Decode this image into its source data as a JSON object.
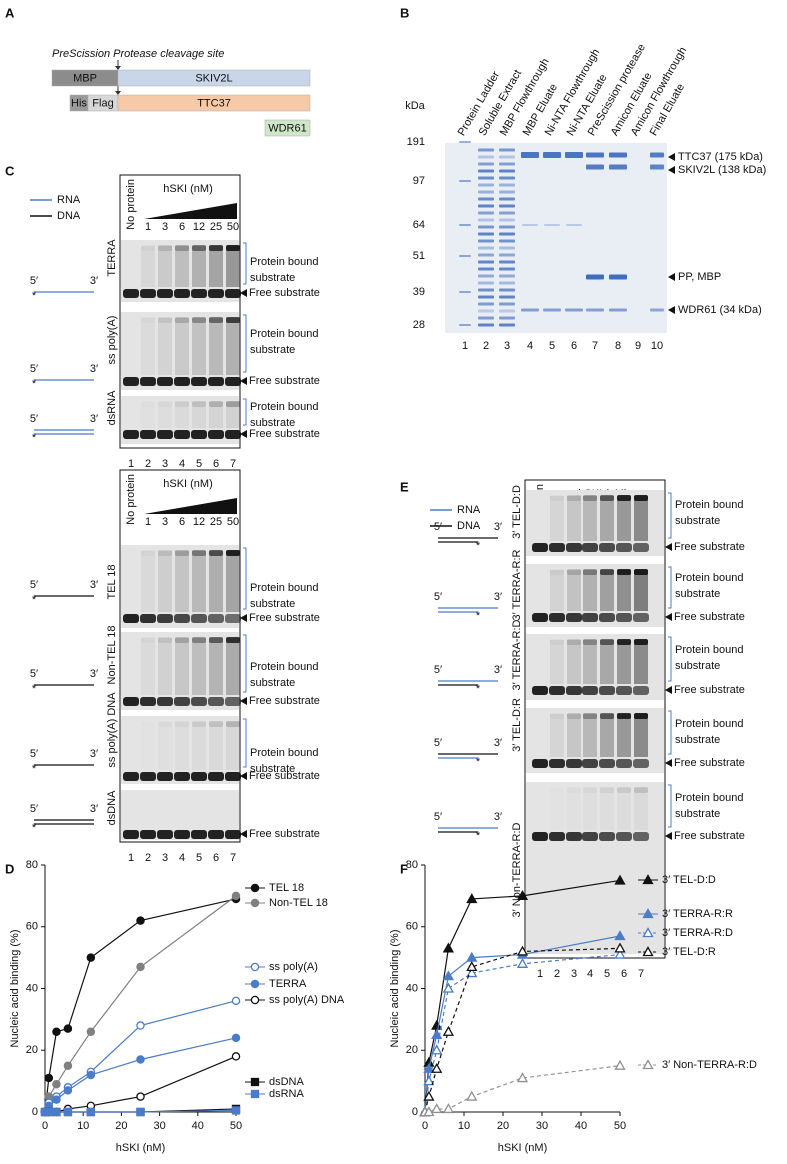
{
  "panel_labels": [
    "A",
    "B",
    "C",
    "D",
    "E",
    "F"
  ],
  "panel_a": {
    "cleavage_site": "PreScission Protease cleavage site",
    "constructs": [
      "MBP",
      "SKIV2L",
      "His",
      "Flag",
      "TTC37",
      "WDR61"
    ]
  },
  "panel_b": {
    "unit": "kDa",
    "lanes": [
      "Protein Ladder",
      "Soluble Extract",
      "MBP Flowthrough",
      "MBP Eluate",
      "Ni-NTA Flowthrough",
      "Ni-NTA Eluate",
      "PreScission protease",
      "Amicon Eluate",
      "Amicon Flowthrough",
      "Final Eluate"
    ],
    "lane_numbers": [
      1,
      2,
      3,
      4,
      5,
      6,
      7,
      8,
      9,
      10
    ],
    "markers": [
      191,
      97,
      64,
      51,
      39,
      28
    ],
    "bands": [
      "TTC37 (175 kDa)",
      "SKIV2L (138 kDa)",
      "PP, MBP",
      "WDR61 (34 kDa)"
    ]
  },
  "emsa": {
    "legend": [
      "RNA",
      "DNA"
    ],
    "no_protein": "No protein",
    "titration": "hSKI (nM)",
    "concentrations": [
      1,
      3,
      6,
      12,
      25,
      50
    ],
    "lane_numbers": [
      1,
      2,
      3,
      4,
      5,
      6,
      7
    ],
    "bound": [
      "Protein bound",
      "substrate"
    ],
    "free": "Free substrate",
    "ends": [
      "5′",
      "3′"
    ],
    "label": "*"
  },
  "panel_c": {
    "substrates": [
      "TERRA",
      "ss poly(A)",
      "dsRNA",
      "TEL 18",
      "Non-TEL 18",
      "ss poly(A) DNA",
      "dsDNA"
    ]
  },
  "panel_e": {
    "substrates": [
      "3′ TEL-D:D",
      "3′ TERRA-R:R",
      "3′ TERRA-R:D",
      "3′ TEL-D:R",
      "3′ Non-TERRA-R:D"
    ]
  },
  "chart_data": [
    {
      "type": "line",
      "xlabel": "hSKI (nM)",
      "ylabel": "Nucleic acid binding (%)",
      "x": [
        0,
        1,
        3,
        6,
        12,
        25,
        50
      ],
      "xlim": [
        0,
        50
      ],
      "xticks": [
        0,
        10,
        20,
        30,
        40,
        50
      ],
      "ylim": [
        0,
        80
      ],
      "yticks": [
        0,
        20,
        40,
        60,
        80
      ],
      "series": [
        {
          "name": "TEL 18",
          "color": "#111111",
          "marker": "circle",
          "filled": true,
          "dashed": false,
          "values": [
            0,
            11,
            26,
            27,
            50,
            62,
            69
          ]
        },
        {
          "name": "Non-TEL 18",
          "color": "#808080",
          "marker": "circle",
          "filled": true,
          "dashed": false,
          "values": [
            0,
            5,
            9,
            15,
            26,
            47,
            70
          ]
        },
        {
          "name": "ss poly(A)",
          "color": "#4a7cc9",
          "marker": "circle",
          "filled": false,
          "dashed": false,
          "values": [
            0,
            3,
            5,
            8,
            13,
            28,
            36
          ]
        },
        {
          "name": "TERRA",
          "color": "#4a7cc9",
          "marker": "circle",
          "filled": true,
          "dashed": false,
          "values": [
            0,
            2,
            4,
            7,
            12,
            17,
            24
          ]
        },
        {
          "name": "ss poly(A) DNA",
          "color": "#111111",
          "marker": "circle",
          "filled": false,
          "dashed": false,
          "values": [
            0,
            0,
            0,
            1,
            2,
            5,
            18
          ]
        },
        {
          "name": "dsDNA",
          "color": "#111111",
          "marker": "square",
          "filled": true,
          "dashed": false,
          "values": [
            0,
            0,
            0,
            0,
            0,
            0,
            1
          ]
        },
        {
          "name": "dsRNA",
          "color": "#4a7cc9",
          "marker": "square",
          "filled": true,
          "dashed": false,
          "values": [
            0,
            0,
            0,
            0,
            0,
            0,
            0.5
          ]
        }
      ]
    },
    {
      "type": "line",
      "xlabel": "hSKI (nM)",
      "ylabel": "Nucleic acid binding (%)",
      "x": [
        0,
        1,
        3,
        6,
        12,
        25,
        50
      ],
      "xlim": [
        0,
        50
      ],
      "xticks": [
        0,
        10,
        20,
        30,
        40,
        50
      ],
      "ylim": [
        0,
        80
      ],
      "yticks": [
        0,
        20,
        40,
        60,
        80
      ],
      "series": [
        {
          "name": "3′ TEL-D:D",
          "color": "#111111",
          "marker": "triangle",
          "filled": true,
          "dashed": false,
          "values": [
            0,
            16,
            28,
            53,
            69,
            70,
            75
          ]
        },
        {
          "name": "3′ TERRA-R:R",
          "color": "#4a7cc9",
          "marker": "triangle",
          "filled": true,
          "dashed": false,
          "values": [
            0,
            14,
            25,
            44,
            50,
            51,
            57
          ]
        },
        {
          "name": "3′ TERRA-R:D",
          "color": "#4a7cc9",
          "marker": "triangle",
          "filled": false,
          "dashed": true,
          "values": [
            0,
            10,
            20,
            40,
            45,
            48,
            51
          ]
        },
        {
          "name": "3′ TEL-D:R",
          "color": "#111111",
          "marker": "triangle",
          "filled": false,
          "dashed": true,
          "values": [
            0,
            5,
            14,
            26,
            47,
            52,
            53
          ]
        },
        {
          "name": "3′ Non-TERRA-R:D",
          "color": "#909090",
          "marker": "triangle",
          "filled": false,
          "dashed": true,
          "values": [
            0,
            0,
            1,
            1,
            5,
            11,
            15
          ]
        }
      ]
    }
  ]
}
